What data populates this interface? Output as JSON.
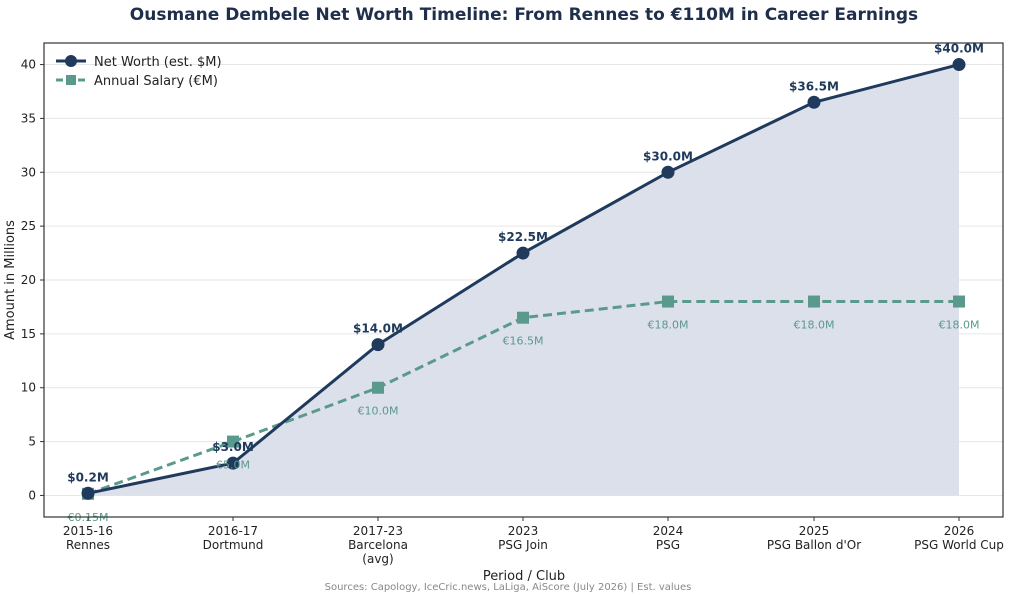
{
  "chart_data": {
    "type": "line",
    "title": "Ousmane Dembele Net Worth Timeline: From Rennes to €110M in Career Earnings",
    "xlabel": "Period / Club",
    "ylabel": "Amount in Millions",
    "ylim": [
      -2,
      42
    ],
    "yticks": [
      0,
      5,
      10,
      15,
      20,
      25,
      30,
      35,
      40
    ],
    "categories": [
      [
        "2015-16",
        "Rennes"
      ],
      [
        "2016-17",
        "Dortmund"
      ],
      [
        "2017-23",
        "Barcelona",
        "(avg)"
      ],
      [
        "2023",
        "PSG Join"
      ],
      [
        "2024",
        "PSG"
      ],
      [
        "2025",
        "PSG Ballon d'Or"
      ],
      [
        "2026",
        "PSG World Cup"
      ]
    ],
    "series": [
      {
        "name": "Net Worth (est. $M)",
        "values": [
          0.2,
          3.0,
          14.0,
          22.5,
          30.0,
          36.5,
          40.0
        ],
        "labels": [
          "$0.2M",
          "$3.0M",
          "$14.0M",
          "$22.5M",
          "$30.0M",
          "$36.5M",
          "$40.0M"
        ],
        "color": "#1f3a5c",
        "fill": "#dadeea",
        "marker": "circle",
        "line_style": "solid"
      },
      {
        "name": "Annual Salary (€M)",
        "values": [
          0.15,
          5.0,
          10.0,
          16.5,
          18.0,
          18.0,
          18.0
        ],
        "labels": [
          "€0.15M",
          "€5.0M",
          "€10.0M",
          "€16.5M",
          "€18.0M",
          "€18.0M",
          "€18.0M"
        ],
        "color": "#5a9a8c",
        "marker": "square",
        "line_style": "dashed"
      }
    ],
    "grid": "horizontal",
    "legend_position": "top-left",
    "source": "Sources: Capology, IceCric.news, LaLiga, AiScore (July 2026) | Est. values"
  }
}
